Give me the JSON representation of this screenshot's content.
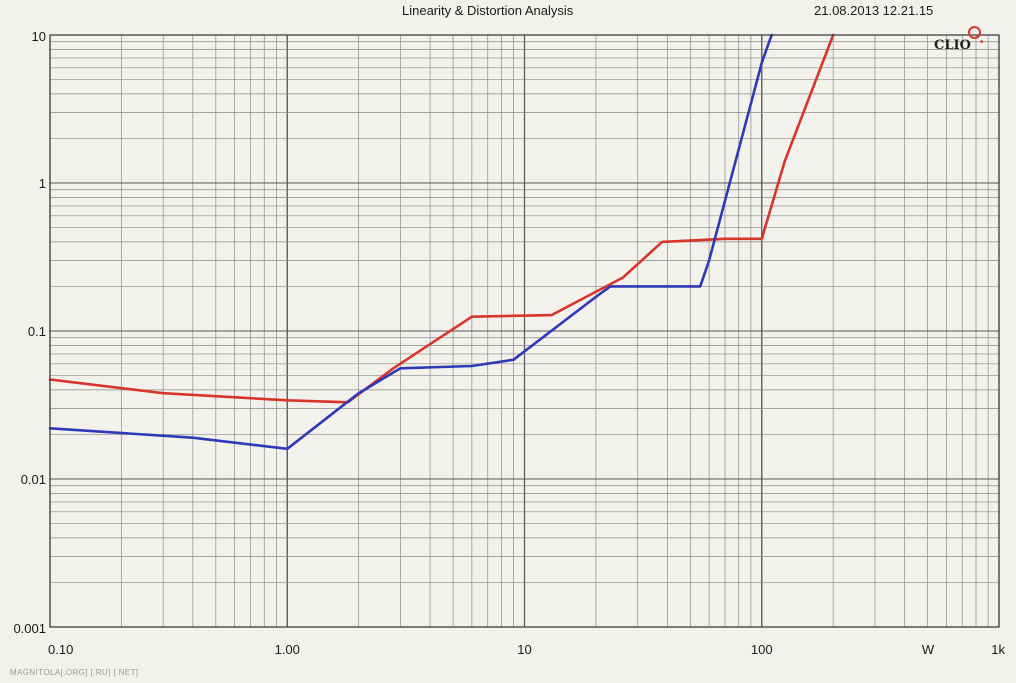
{
  "header": {
    "title": "Linearity & Distortion Analysis",
    "timestamp": "21.08.2013 12.21.15"
  },
  "logo": {
    "text": "CLIO"
  },
  "watermark": "MAGNITOLA[.ORG] [.RU] [.NET]",
  "chart_data": {
    "type": "line",
    "title": "Linearity & Distortion Analysis",
    "xlabel": "W",
    "ylabel": "",
    "x_scale": "log",
    "y_scale": "log",
    "xlim": [
      0.1,
      1000
    ],
    "ylim": [
      0.001,
      10
    ],
    "x_ticks": [
      {
        "value": 0.1,
        "label": "0.10"
      },
      {
        "value": 1,
        "label": "1.00"
      },
      {
        "value": 10,
        "label": "10"
      },
      {
        "value": 100,
        "label": "100"
      },
      {
        "value": 1000,
        "label": "1k"
      }
    ],
    "y_ticks": [
      {
        "value": 10,
        "label": "10"
      },
      {
        "value": 1,
        "label": "1"
      },
      {
        "value": 0.1,
        "label": "0.1"
      },
      {
        "value": 0.01,
        "label": "0.01"
      },
      {
        "value": 0.001,
        "label": "0.001"
      }
    ],
    "grid": true,
    "legend": "none",
    "series": [
      {
        "color": "#d8352a",
        "x": [
          0.1,
          0.3,
          1.0,
          1.8,
          2.8,
          6.0,
          13.0,
          26.0,
          38.0,
          70.0,
          100.0,
          125.0,
          200.0
        ],
        "y": [
          0.047,
          0.038,
          0.034,
          0.033,
          0.056,
          0.125,
          0.128,
          0.23,
          0.4,
          0.42,
          0.42,
          1.4,
          10.0
        ]
      },
      {
        "color": "#2f39b8",
        "x": [
          0.1,
          0.4,
          1.0,
          2.0,
          3.0,
          6.0,
          9.0,
          20.0,
          23.0,
          55.0,
          60.0,
          100.0,
          110.0
        ],
        "y": [
          0.022,
          0.019,
          0.016,
          0.038,
          0.056,
          0.058,
          0.064,
          0.17,
          0.2,
          0.2,
          0.3,
          6.5,
          10.0
        ]
      }
    ]
  }
}
